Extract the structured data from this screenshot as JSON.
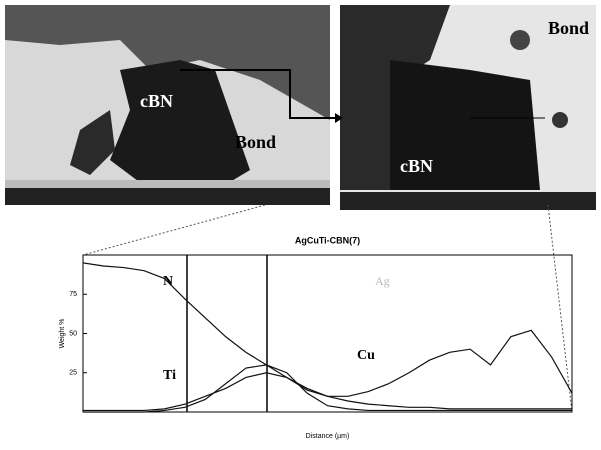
{
  "images": [
    {
      "labels": [
        "cBN",
        "Bond"
      ]
    },
    {
      "labels": [
        "cBN",
        "Bond"
      ]
    }
  ],
  "chart_data": {
    "type": "line",
    "title": "AgCuTi-CBN(7)",
    "y_label": "Weight %",
    "x_label": "Distance (µm)",
    "annotation": "Ag",
    "x": [
      0,
      1,
      2,
      3,
      4,
      5,
      6,
      7,
      8,
      9,
      10,
      11,
      12,
      13,
      14,
      15,
      16,
      17,
      18,
      19,
      20,
      21,
      22,
      23,
      24
    ],
    "xlim": [
      0,
      24
    ],
    "ylim": [
      0,
      100
    ],
    "yticks": [
      25,
      50,
      75
    ],
    "series": [
      {
        "name": "N",
        "color": "#111",
        "values": [
          95,
          93,
          92,
          90,
          85,
          72,
          60,
          48,
          38,
          30,
          22,
          14,
          10,
          7,
          5,
          4,
          3,
          3,
          2,
          2,
          2,
          2,
          2,
          2,
          2
        ]
      },
      {
        "name": "Ti",
        "color": "#111",
        "values": [
          0,
          0,
          0,
          0,
          1,
          3,
          8,
          18,
          28,
          30,
          25,
          12,
          4,
          2,
          1,
          1,
          1,
          1,
          1,
          1,
          1,
          1,
          1,
          1,
          1
        ]
      },
      {
        "name": "Cu",
        "color": "#111",
        "values": [
          1,
          1,
          1,
          1,
          2,
          5,
          10,
          15,
          22,
          25,
          22,
          15,
          10,
          10,
          13,
          18,
          25,
          33,
          38,
          40,
          30,
          48,
          52,
          35,
          12
        ]
      }
    ]
  }
}
